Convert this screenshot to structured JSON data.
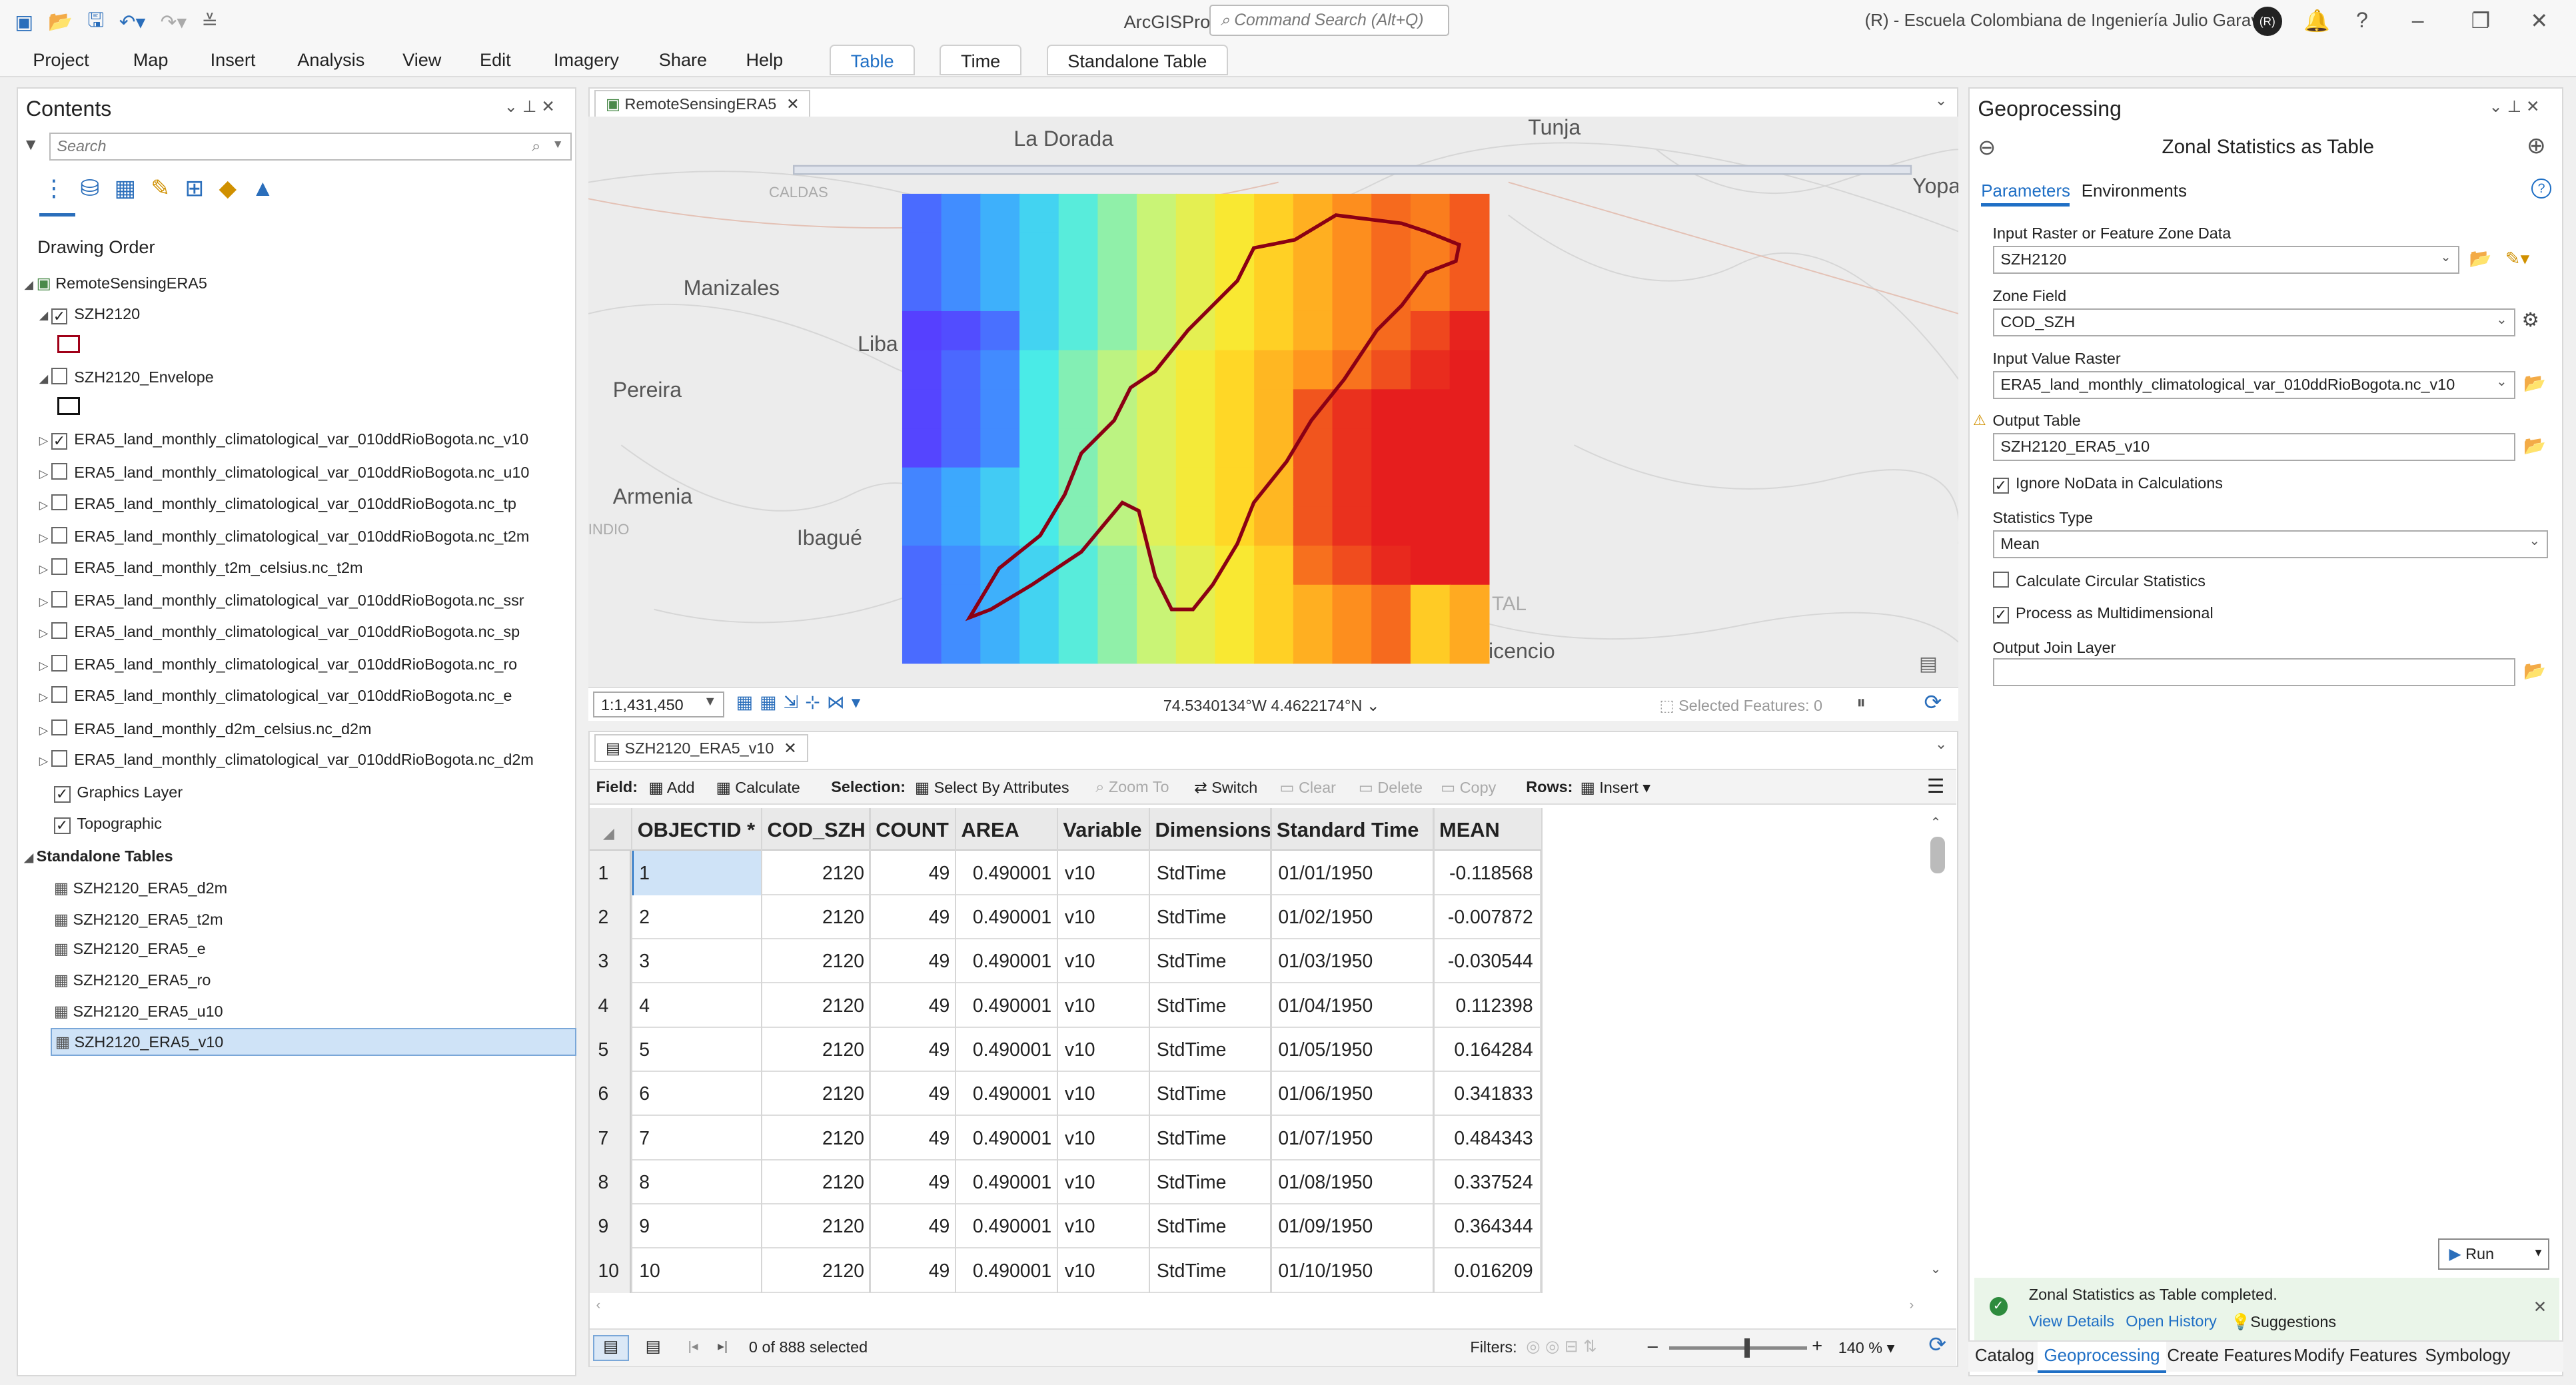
{
  "app": {
    "title": "ArcGISPro",
    "command_search_placeholder": "Command Search (Alt+Q)",
    "org": "(R) - Escuela Colombiana de Ingeniería Julio Garavito",
    "avatar": "(R)"
  },
  "ribbon": {
    "tabs": [
      "Project",
      "Map",
      "Insert",
      "Analysis",
      "View",
      "Edit",
      "Imagery",
      "Share",
      "Help"
    ],
    "context_tabs": [
      "Table",
      "Time",
      "Standalone Table"
    ]
  },
  "contents": {
    "title": "Contents",
    "search_placeholder": "Search",
    "drawing_order": "Drawing Order",
    "map_name": "RemoteSensingERA5",
    "layers": [
      {
        "label": "SZH2120",
        "checked": true
      },
      {
        "label": "SZH2120_Envelope",
        "checked": false
      },
      {
        "label": "ERA5_land_monthly_climatological_var_010ddRioBogota.nc_v10",
        "checked": true
      },
      {
        "label": "ERA5_land_monthly_climatological_var_010ddRioBogota.nc_u10",
        "checked": false
      },
      {
        "label": "ERA5_land_monthly_climatological_var_010ddRioBogota.nc_tp",
        "checked": false
      },
      {
        "label": "ERA5_land_monthly_climatological_var_010ddRioBogota.nc_t2m",
        "checked": false
      },
      {
        "label": "ERA5_land_monthly_t2m_celsius.nc_t2m",
        "checked": false
      },
      {
        "label": "ERA5_land_monthly_climatological_var_010ddRioBogota.nc_ssr",
        "checked": false
      },
      {
        "label": "ERA5_land_monthly_climatological_var_010ddRioBogota.nc_sp",
        "checked": false
      },
      {
        "label": "ERA5_land_monthly_climatological_var_010ddRioBogota.nc_ro",
        "checked": false
      },
      {
        "label": "ERA5_land_monthly_climatological_var_010ddRioBogota.nc_e",
        "checked": false
      },
      {
        "label": "ERA5_land_monthly_d2m_celsius.nc_d2m",
        "checked": false
      },
      {
        "label": "ERA5_land_monthly_climatological_var_010ddRioBogota.nc_d2m",
        "checked": false
      },
      {
        "label": "Graphics Layer",
        "checked": true
      },
      {
        "label": "Topographic",
        "checked": true
      }
    ],
    "standalone_header": "Standalone Tables",
    "tables": [
      "SZH2120_ERA5_d2m",
      "SZH2120_ERA5_t2m",
      "SZH2120_ERA5_e",
      "SZH2120_ERA5_ro",
      "SZH2120_ERA5_u10",
      "SZH2120_ERA5_v10"
    ]
  },
  "map": {
    "tab": "RemoteSensingERA5",
    "places": {
      "la_dorada": "La Dorada",
      "tunja": "Tunja",
      "yopal": "Yopa",
      "caldas": "CALDAS",
      "manizales": "Manizales",
      "lib": "Liba",
      "pereira": "Pereira",
      "armenia": "Armenia",
      "ibague": "Ibagué",
      "indio": "INDIO",
      "tal": "TAL",
      "vicencio": "icencio"
    },
    "scale": "1:1,431,450",
    "coords": "74.5340134°W 4.4622174°N",
    "selected_features": "Selected Features: 0"
  },
  "table": {
    "tab": "SZH2120_ERA5_v10",
    "toolbar": {
      "field": "Field:",
      "add": "Add",
      "calculate": "Calculate",
      "selection": "Selection:",
      "select_by_attr": "Select By Attributes",
      "zoom_to": "Zoom To",
      "switch": "Switch",
      "clear": "Clear",
      "delete": "Delete",
      "copy": "Copy",
      "rows": "Rows:",
      "insert": "Insert"
    },
    "columns": [
      "OBJECTID *",
      "COD_SZH",
      "COUNT",
      "AREA",
      "Variable",
      "Dimensions",
      "Standard Time",
      "MEAN"
    ],
    "rows": [
      [
        "1",
        "1",
        "2120",
        "49",
        "0.490001",
        "v10",
        "StdTime",
        "01/01/1950",
        "-0.118568"
      ],
      [
        "2",
        "2",
        "2120",
        "49",
        "0.490001",
        "v10",
        "StdTime",
        "01/02/1950",
        "-0.007872"
      ],
      [
        "3",
        "3",
        "2120",
        "49",
        "0.490001",
        "v10",
        "StdTime",
        "01/03/1950",
        "-0.030544"
      ],
      [
        "4",
        "4",
        "2120",
        "49",
        "0.490001",
        "v10",
        "StdTime",
        "01/04/1950",
        "0.112398"
      ],
      [
        "5",
        "5",
        "2120",
        "49",
        "0.490001",
        "v10",
        "StdTime",
        "01/05/1950",
        "0.164284"
      ],
      [
        "6",
        "6",
        "2120",
        "49",
        "0.490001",
        "v10",
        "StdTime",
        "01/06/1950",
        "0.341833"
      ],
      [
        "7",
        "7",
        "2120",
        "49",
        "0.490001",
        "v10",
        "StdTime",
        "01/07/1950",
        "0.484343"
      ],
      [
        "8",
        "8",
        "2120",
        "49",
        "0.490001",
        "v10",
        "StdTime",
        "01/08/1950",
        "0.337524"
      ],
      [
        "9",
        "9",
        "2120",
        "49",
        "0.490001",
        "v10",
        "StdTime",
        "01/09/1950",
        "0.364344"
      ],
      [
        "10",
        "10",
        "2120",
        "49",
        "0.490001",
        "v10",
        "StdTime",
        "01/10/1950",
        "0.016209"
      ]
    ],
    "status": "0 of 888 selected",
    "filters": "Filters:",
    "zoom": "140 %"
  },
  "geo": {
    "title": "Geoprocessing",
    "tool": "Zonal Statistics as Table",
    "tabs": [
      "Parameters",
      "Environments"
    ],
    "input_raster_label": "Input Raster or Feature Zone Data",
    "input_raster": "SZH2120",
    "zone_field_label": "Zone Field",
    "zone_field": "COD_SZH",
    "value_raster_label": "Input Value Raster",
    "value_raster": "ERA5_land_monthly_climatological_var_010ddRioBogota.nc_v10",
    "output_table_label": "Output Table",
    "output_table": "SZH2120_ERA5_v10",
    "ignore_nodata": "Ignore NoData in Calculations",
    "stats_type_label": "Statistics Type",
    "stats_type": "Mean",
    "circular": "Calculate Circular Statistics",
    "multidim": "Process as Multidimensional",
    "join_layer_label": "Output Join Layer",
    "run": "Run",
    "completed": "Zonal Statistics as Table completed.",
    "view_details": "View Details",
    "open_history": "Open History",
    "suggestions": "Suggestions"
  },
  "bottom_tabs": [
    "Catalog",
    "Geoprocessing",
    "Create Features",
    "Modify Features",
    "Symbology"
  ]
}
